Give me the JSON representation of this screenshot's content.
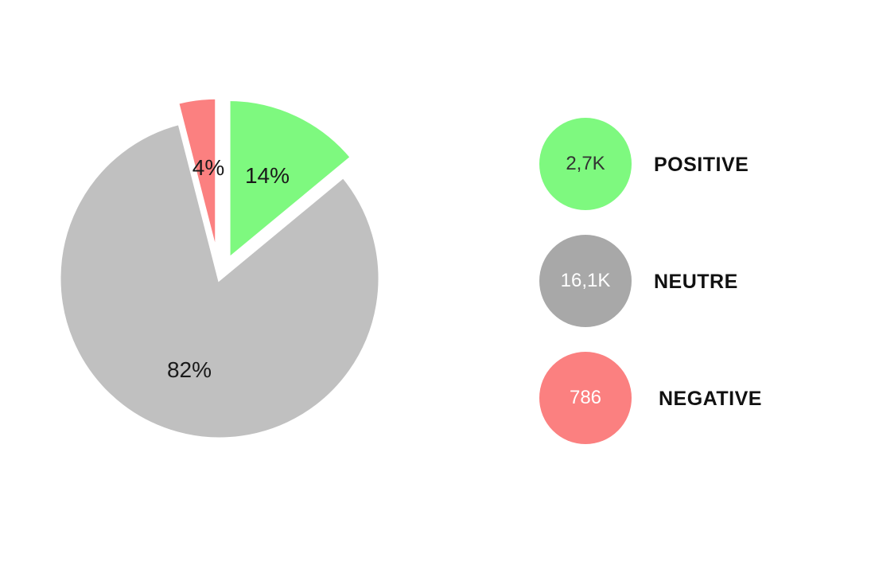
{
  "chart_data": {
    "type": "pie",
    "slices": [
      {
        "label": "NEGATIVE",
        "percent": 4,
        "percent_label": "4%",
        "count_label": "786",
        "color": "#fb8080",
        "exploded": true
      },
      {
        "label": "POSITIVE",
        "percent": 14,
        "percent_label": "14%",
        "count_label": "2,7K",
        "color": "#7ef97f",
        "exploded": true
      },
      {
        "label": "NEUTRE",
        "percent": 82,
        "percent_label": "82%",
        "count_label": "16,1K",
        "color": "#c0c0c0",
        "exploded": false
      }
    ],
    "legend": {
      "placement": "right",
      "items": [
        {
          "label": "POSITIVE",
          "value": "2,7K",
          "color": "#7ef97f",
          "text_color": "#333333"
        },
        {
          "label": "NEUTRE",
          "value": "16,1K",
          "color": "#a8a8a8",
          "text_color": "#ffffff"
        },
        {
          "label": "NEGATIVE",
          "value": "786",
          "color": "#fb8080",
          "text_color": "#ffffff"
        }
      ]
    }
  }
}
